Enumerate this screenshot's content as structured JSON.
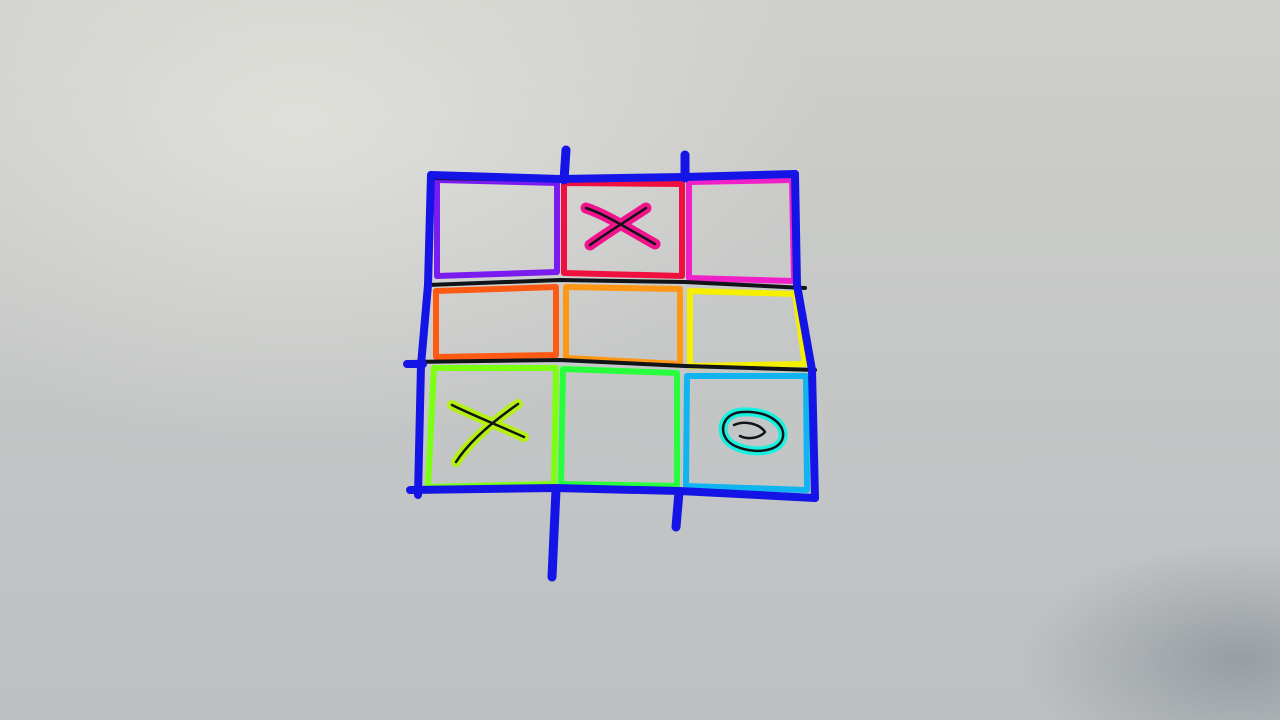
{
  "board": {
    "rows": 3,
    "cols": 3,
    "cells": [
      [
        "",
        "X",
        ""
      ],
      [
        "",
        "",
        ""
      ],
      [
        "X",
        "",
        "O"
      ]
    ],
    "frame_color": "#1414e6",
    "cell_colors": [
      [
        "#7a1cf0",
        "#f01040",
        "#f020c8"
      ],
      [
        "#ff5a14",
        "#ff9614",
        "#f5f000"
      ],
      [
        "#7cff10",
        "#28ff3c",
        "#10b4f0"
      ]
    ],
    "mark_highlight_colors": {
      "0-1": "#f0148c",
      "2-0": "#b4f014",
      "2-2": "#18f0e0"
    },
    "ink_color": "#101418"
  }
}
